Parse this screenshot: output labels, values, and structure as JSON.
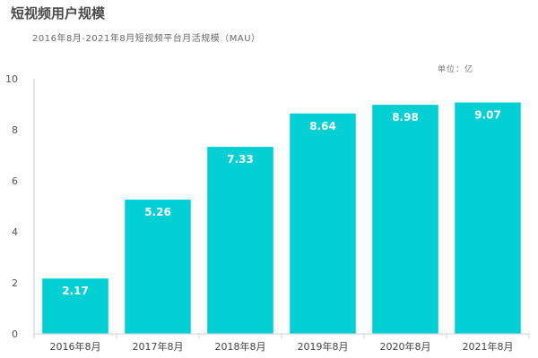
{
  "chart_data": {
    "type": "bar",
    "title": "短视频用户规模",
    "subtitle": "2016年8月-2021年8月短视频平台月活规模（MAU）",
    "unit_label": "单位：亿",
    "categories": [
      "2016年8月",
      "2017年8月",
      "2018年8月",
      "2019年8月",
      "2020年8月",
      "2021年8月"
    ],
    "values": [
      2.17,
      5.26,
      7.33,
      8.64,
      8.98,
      9.07
    ],
    "value_labels": [
      "2.17",
      "5.26",
      "7.33",
      "8.64",
      "8.98",
      "9.07"
    ],
    "yticks": [
      "0",
      "2",
      "4",
      "6",
      "8",
      "10"
    ],
    "ylim": [
      0,
      10
    ],
    "grid": false,
    "bar_color": "#00d0d4",
    "axis_color": "#cfcfcf"
  }
}
